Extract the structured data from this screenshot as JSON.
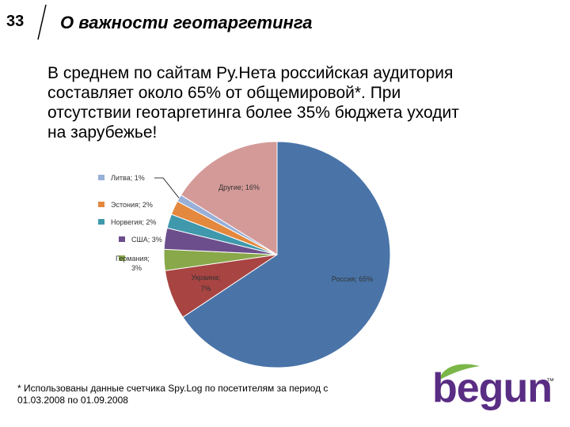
{
  "header": {
    "slide_number": "33",
    "title": "О важности геотаргетинга"
  },
  "body": {
    "line1": "В среднем по сайтам Ру.Нета российская аудитория",
    "line2": "составляет около 65% от общемировой*. При",
    "line3": "отсутствии геотаргетинга более 35% бюджета уходит",
    "line4": "на зарубежье!"
  },
  "footnote": {
    "line1": "* Использованы данные счетчика Spy.Log по посетителям за период с",
    "line2": "01.03.2008 по 01.09.2008"
  },
  "logo": {
    "text": "begun",
    "tm": "™"
  },
  "chart_data": {
    "type": "pie",
    "title": "",
    "slices": [
      {
        "label": "Россия; 65%",
        "value": 65,
        "color": "#4a74a8"
      },
      {
        "label": "Украина; 7%",
        "value": 7,
        "color": "#a84442"
      },
      {
        "label": "Германия; 3%",
        "value": 3,
        "color": "#88a84a"
      },
      {
        "label": "США; 3%",
        "value": 3,
        "color": "#6c4e8c"
      },
      {
        "label": "Норвегия; 2%",
        "value": 2,
        "color": "#3f98ac"
      },
      {
        "label": "Эстония; 2%",
        "value": 2,
        "color": "#e3883c"
      },
      {
        "label": "Литва; 1%",
        "value": 1,
        "color": "#98b0d8"
      },
      {
        "label": "Другие; 16%",
        "value": 16,
        "color": "#d49a98"
      }
    ]
  }
}
